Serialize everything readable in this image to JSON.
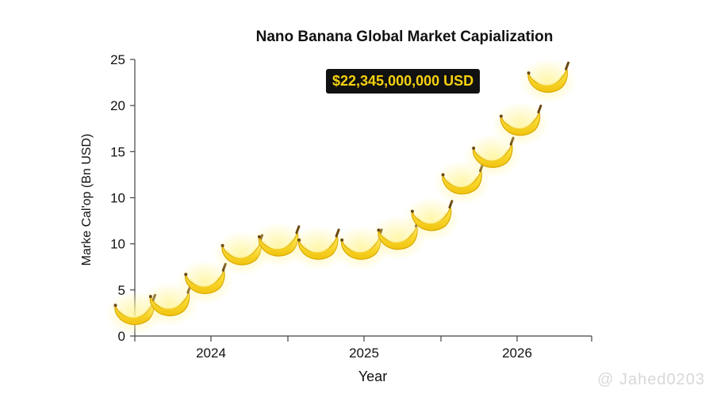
{
  "chart_data": {
    "type": "line",
    "title": "Nano Banana Global Market Capialization",
    "xlabel": "Year",
    "ylabel": "Marke Cal'op (Bn USD)",
    "y_tick_labels": [
      "0",
      "5",
      "10",
      "10",
      "15",
      "20",
      "25"
    ],
    "x_tick_labels": [
      "2024",
      "2025",
      "2026"
    ],
    "callout": "$22,345,000,000 USD",
    "marker": "banana-icon",
    "series": [
      {
        "x": [
          2023.5,
          2023.73,
          2023.96,
          2024.2,
          2024.44,
          2024.7,
          2024.98,
          2025.22,
          2025.44,
          2025.64,
          2025.84,
          2026.02,
          2026.2
        ],
        "y": [
          2.2,
          3.0,
          5.0,
          7.6,
          8.4,
          8.1,
          8.1,
          9.0,
          10.7,
          14.0,
          16.4,
          19.3,
          23.2
        ]
      }
    ],
    "colors": {
      "banana": "#f6d21c",
      "banana_dark": "#d9a800",
      "glow": "#fff6a8"
    },
    "grid": false
  },
  "watermark": "@ Jahed0203"
}
